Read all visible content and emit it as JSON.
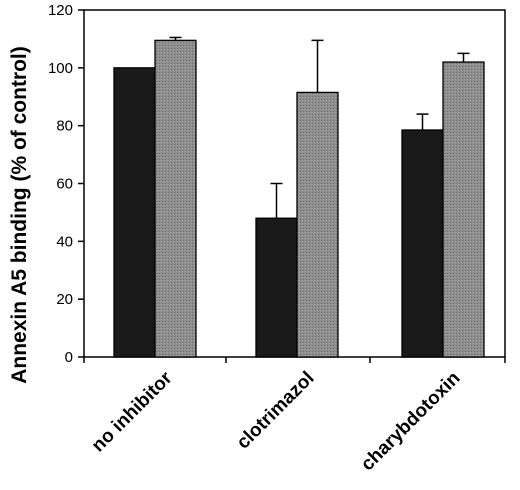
{
  "chart_data": {
    "type": "bar",
    "title": "",
    "xlabel": "",
    "ylabel": "Annexin A5 binding (% of control)",
    "ylim": [
      0,
      120
    ],
    "yticks": [
      0,
      20,
      40,
      60,
      80,
      100,
      120
    ],
    "grid": false,
    "legend": "none",
    "categories": [
      "no inhibitor",
      "clotrimazol",
      "charybdotoxin"
    ],
    "series": [
      {
        "color": "#1a1a1a",
        "values": [
          100,
          48,
          78.5
        ],
        "errors": [
          0,
          12,
          5.5
        ]
      },
      {
        "color": "#8a8a8a",
        "values": [
          109.5,
          91.5,
          102
        ],
        "errors": [
          1,
          18,
          3
        ]
      }
    ]
  }
}
